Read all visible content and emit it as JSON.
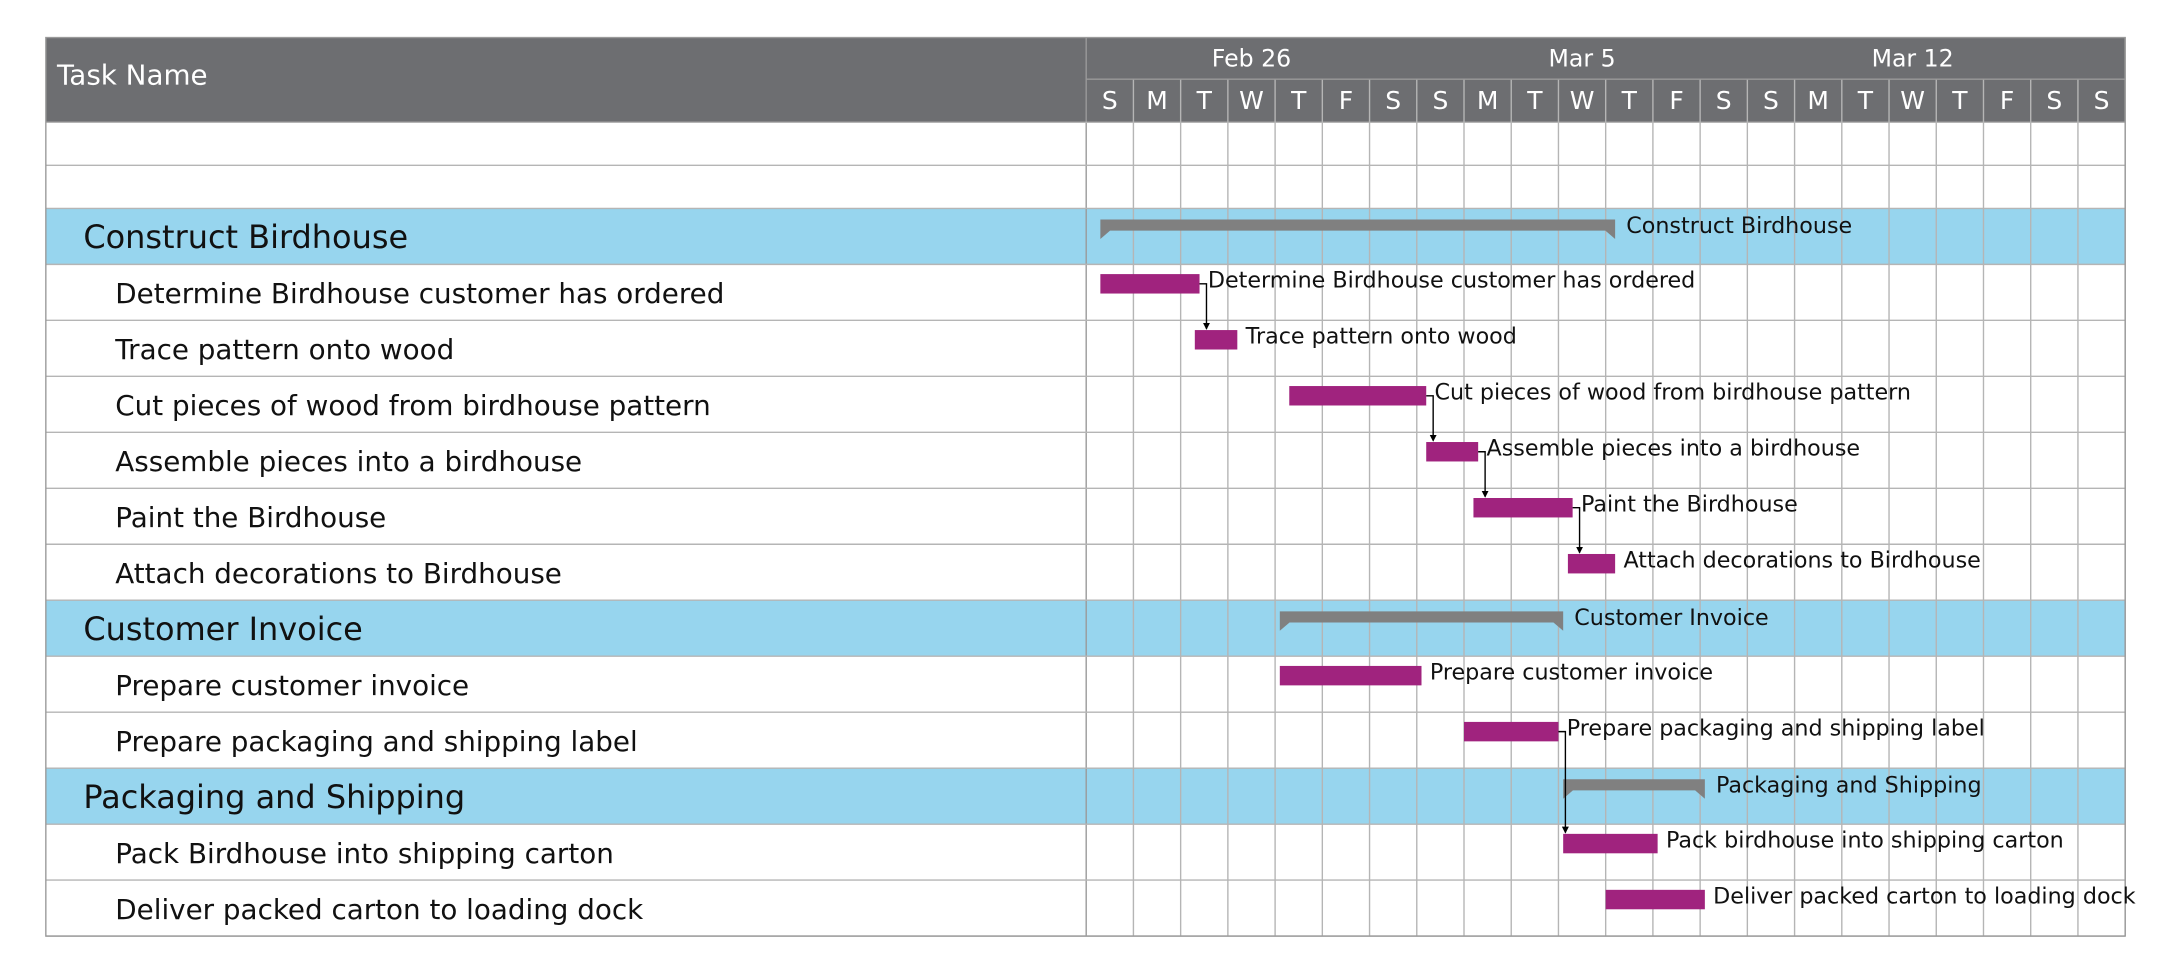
{
  "chart_data": {
    "type": "gantt",
    "header": "Task Name",
    "weeks": [
      "Feb 26",
      "Mar 5",
      "Mar 12"
    ],
    "days": [
      "S",
      "M",
      "T",
      "W",
      "T",
      "F",
      "S",
      "S",
      "M",
      "T",
      "W",
      "T",
      "F",
      "S",
      "S",
      "M",
      "T",
      "W",
      "T",
      "F",
      "S",
      "S"
    ],
    "xlim": [
      0,
      22
    ],
    "task_color": "#a0237e",
    "summary_color": "#808080",
    "summary_row_color": "#97d5ee",
    "header_color": "#6d6e71",
    "rows": [
      {
        "name": "Construct Birdhouse",
        "kind": "summary",
        "start": 0.3,
        "end": 11.2,
        "bar_label": "Construct Birdhouse"
      },
      {
        "name": "Determine Birdhouse customer has ordered",
        "kind": "task",
        "start": 0.3,
        "end": 2.4,
        "bar_label": "Determine Birdhouse customer has ordered"
      },
      {
        "name": "Trace pattern onto wood",
        "kind": "task",
        "start": 2.3,
        "end": 3.2,
        "bar_label": "Trace pattern onto wood"
      },
      {
        "name": "Cut pieces of wood from birdhouse pattern",
        "kind": "task",
        "start": 4.3,
        "end": 7.2,
        "bar_label": "Cut pieces of wood from birdhouse pattern"
      },
      {
        "name": "Assemble pieces into a birdhouse",
        "kind": "task",
        "start": 7.2,
        "end": 8.3,
        "bar_label": "Assemble pieces into a birdhouse"
      },
      {
        "name": "Paint the Birdhouse",
        "kind": "task",
        "start": 8.2,
        "end": 10.3,
        "bar_label": "Paint the Birdhouse"
      },
      {
        "name": "Attach decorations to Birdhouse",
        "kind": "task",
        "start": 10.2,
        "end": 11.2,
        "bar_label": "Attach decorations to Birdhouse"
      },
      {
        "name": "Customer Invoice",
        "kind": "summary",
        "start": 4.1,
        "end": 10.1,
        "bar_label": "Customer Invoice"
      },
      {
        "name": "Prepare customer invoice",
        "kind": "task",
        "start": 4.1,
        "end": 7.1,
        "bar_label": "Prepare customer invoice"
      },
      {
        "name": "Prepare packaging and shipping label",
        "kind": "task",
        "start": 8.0,
        "end": 10.0,
        "bar_label": "Prepare packaging and shipping label"
      },
      {
        "name": "Packaging and Shipping",
        "kind": "summary",
        "start": 10.1,
        "end": 13.1,
        "bar_label": "Packaging and Shipping"
      },
      {
        "name": "Pack Birdhouse into shipping carton",
        "kind": "task",
        "start": 10.1,
        "end": 12.1,
        "bar_label": "Pack birdhouse into shipping carton"
      },
      {
        "name": "Deliver packed carton to loading dock",
        "kind": "task",
        "start": 11.0,
        "end": 13.1,
        "bar_label": "Deliver packed carton to loading dock"
      }
    ],
    "links": [
      [
        1,
        2
      ],
      [
        3,
        4
      ],
      [
        4,
        5
      ],
      [
        5,
        6
      ],
      [
        9,
        11
      ]
    ]
  }
}
